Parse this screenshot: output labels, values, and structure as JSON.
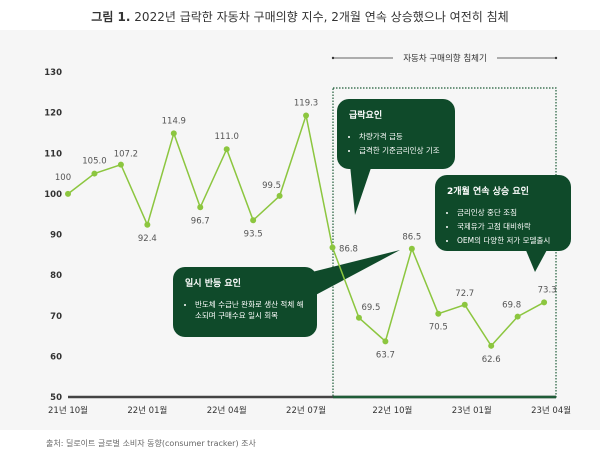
{
  "title_bold": "그림 1.",
  "title": "2022년 급락한 자동차 구매의향 지수, 2개월 연속 상승했으나 여전히 침체",
  "source": "출처: 딜로이트 글로벌 소비자 동향(consumer tracker) 조사",
  "colors": {
    "line": "#8cc63f",
    "box": "#0f4a2a",
    "axis": "#333333"
  },
  "period_label": "자동차 구매의향 침체기",
  "callouts": [
    {
      "title": "급락요인",
      "items": [
        "차량가격 급등",
        "급격한 기준금리인상 기조"
      ]
    },
    {
      "title": "2개월 연속 상승 요인",
      "items": [
        "금리인상 중단 조짐",
        "국제유가 고점 대비하락",
        "OEM의 다양한 저가 모델출시"
      ]
    },
    {
      "title": "일시 반등 요인",
      "items": [
        "반도체 수급난 완화로 생산 적체 해소되며 구매수요 일시 회복"
      ]
    }
  ],
  "chart_data": {
    "type": "line",
    "title": "",
    "xlabel": "",
    "ylabel": "",
    "ylim": [
      50,
      130
    ],
    "yticks": [
      50,
      60,
      70,
      80,
      90,
      100,
      110,
      120,
      130
    ],
    "x": [
      "21-10",
      "21-11",
      "21-12",
      "22-01",
      "22-02",
      "22-03",
      "22-04",
      "22-05",
      "22-06",
      "22-07",
      "22-08",
      "22-09",
      "22-10",
      "22-11",
      "22-12",
      "23-01",
      "23-02",
      "23-03",
      "23-04"
    ],
    "xtick_labels": [
      "21년 10월",
      "22년 01월",
      "22년 04월",
      "22년 07월",
      "22년 10월",
      "23년 01월",
      "23년 04월"
    ],
    "values": [
      100,
      105.0,
      107.2,
      92.4,
      114.9,
      96.7,
      111.0,
      93.5,
      99.5,
      119.3,
      86.8,
      69.5,
      63.7,
      86.5,
      70.5,
      72.7,
      62.6,
      69.8,
      73.3
    ],
    "value_labels": [
      "100",
      "105.0",
      "107.2",
      "92.4",
      "114.9",
      "96.7",
      "111.0",
      "93.5",
      "99.5",
      "119.3",
      "86.8",
      "69.5",
      "63.7",
      "86.5",
      "70.5",
      "72.7",
      "62.6",
      "69.8",
      "73.3"
    ],
    "grid": false
  }
}
